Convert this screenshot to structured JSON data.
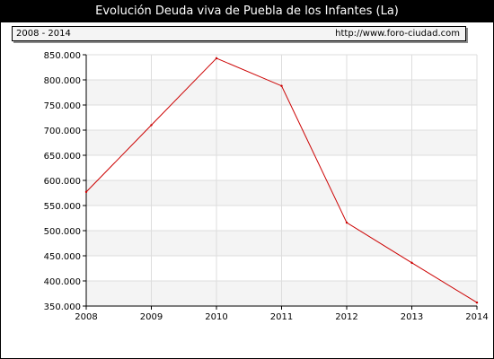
{
  "header": {
    "title": "Evolución Deuda viva de Puebla de los Infantes (La)",
    "range_label": "2008 - 2014",
    "source_url": "http://www.foro-ciudad.com"
  },
  "chart_data": {
    "type": "line",
    "title": "Evolución Deuda viva de Puebla de los Infantes (La)",
    "xlabel": "",
    "ylabel": "",
    "x": [
      2008,
      2009,
      2010,
      2011,
      2012,
      2013,
      2014
    ],
    "series": [
      {
        "values": [
          577000,
          710000,
          843000,
          788000,
          516000,
          436000,
          357000
        ],
        "color": "#cc0000"
      }
    ],
    "ylim": [
      350000,
      850000
    ],
    "y_ticks": [
      350000,
      400000,
      450000,
      500000,
      550000,
      600000,
      650000,
      700000,
      750000,
      800000,
      850000
    ],
    "y_tick_labels": [
      "350.000",
      "400.000",
      "450.000",
      "500.000",
      "550.000",
      "600.000",
      "650.000",
      "700.000",
      "750.000",
      "800.000",
      "850.000"
    ],
    "x_tick_labels": [
      "2008",
      "2009",
      "2010",
      "2011",
      "2012",
      "2013",
      "2014"
    ],
    "grid": true,
    "band_color": "#f4f4f4",
    "grid_color": "#dddddd"
  }
}
